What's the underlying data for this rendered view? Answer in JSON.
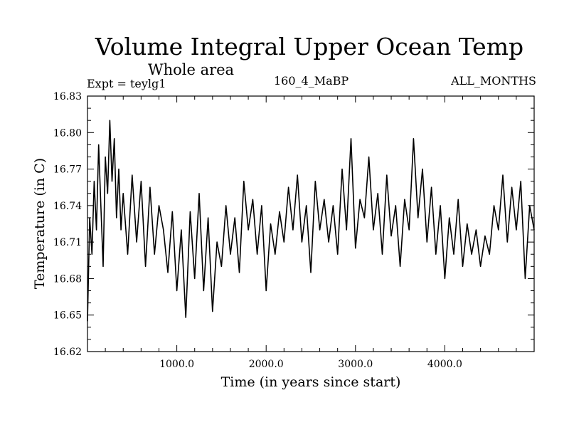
{
  "chart_data": {
    "type": "line",
    "title": "Volume Integral Upper Ocean Temp",
    "subtitle": "Whole area",
    "experiment": "Expt = teylg1",
    "run": "160_4_MaBP",
    "months": "ALL_MONTHS",
    "xlabel": "Time (in years since start)",
    "ylabel": "Temperature (in C)",
    "xlim": [
      0,
      5000
    ],
    "ylim": [
      16.62,
      16.83
    ],
    "x_ticks": [
      {
        "value": 1000,
        "label": "1000.0"
      },
      {
        "value": 2000,
        "label": "2000.0"
      },
      {
        "value": 3000,
        "label": "3000.0"
      },
      {
        "value": 4000,
        "label": "4000.0"
      }
    ],
    "y_ticks": [
      {
        "value": 16.62,
        "label": "16.62"
      },
      {
        "value": 16.65,
        "label": "16.65"
      },
      {
        "value": 16.68,
        "label": "16.68"
      },
      {
        "value": 16.71,
        "label": "16.71"
      },
      {
        "value": 16.74,
        "label": "16.74"
      },
      {
        "value": 16.77,
        "label": "16.77"
      },
      {
        "value": 16.8,
        "label": "16.80"
      },
      {
        "value": 16.83,
        "label": "16.83"
      }
    ],
    "x_minor_step": 200,
    "y_minor_step": 0.01,
    "series": [
      {
        "name": "Volume Integral Upper Ocean Temp",
        "x": [
          0,
          25,
          50,
          75,
          100,
          125,
          150,
          175,
          200,
          225,
          250,
          275,
          300,
          325,
          350,
          375,
          400,
          450,
          500,
          550,
          600,
          650,
          700,
          750,
          800,
          850,
          900,
          950,
          1000,
          1050,
          1100,
          1150,
          1200,
          1250,
          1300,
          1350,
          1400,
          1450,
          1500,
          1550,
          1600,
          1650,
          1700,
          1750,
          1800,
          1850,
          1900,
          1950,
          2000,
          2050,
          2100,
          2150,
          2200,
          2250,
          2300,
          2350,
          2400,
          2450,
          2500,
          2550,
          2600,
          2650,
          2700,
          2750,
          2800,
          2850,
          2900,
          2950,
          3000,
          3050,
          3100,
          3150,
          3200,
          3250,
          3300,
          3350,
          3400,
          3450,
          3500,
          3550,
          3600,
          3650,
          3700,
          3750,
          3800,
          3850,
          3900,
          3950,
          4000,
          4050,
          4100,
          4150,
          4200,
          4250,
          4300,
          4350,
          4400,
          4450,
          4500,
          4550,
          4600,
          4650,
          4700,
          4750,
          4800,
          4850,
          4900,
          4950,
          5000
        ],
        "values": [
          16.645,
          16.73,
          16.7,
          16.76,
          16.72,
          16.79,
          16.74,
          16.69,
          16.78,
          16.75,
          16.81,
          16.76,
          16.795,
          16.73,
          16.77,
          16.72,
          16.75,
          16.7,
          16.765,
          16.71,
          16.76,
          16.69,
          16.755,
          16.7,
          16.74,
          16.72,
          16.685,
          16.735,
          16.67,
          16.72,
          16.648,
          16.735,
          16.68,
          16.75,
          16.67,
          16.73,
          16.653,
          16.71,
          16.69,
          16.74,
          16.7,
          16.73,
          16.685,
          16.76,
          16.72,
          16.745,
          16.7,
          16.74,
          16.67,
          16.725,
          16.7,
          16.735,
          16.71,
          16.755,
          16.72,
          16.765,
          16.71,
          16.74,
          16.685,
          16.76,
          16.72,
          16.745,
          16.71,
          16.74,
          16.7,
          16.77,
          16.72,
          16.795,
          16.705,
          16.745,
          16.73,
          16.78,
          16.72,
          16.75,
          16.7,
          16.765,
          16.715,
          16.74,
          16.69,
          16.745,
          16.72,
          16.795,
          16.73,
          16.77,
          16.71,
          16.755,
          16.7,
          16.74,
          16.68,
          16.73,
          16.7,
          16.745,
          16.69,
          16.725,
          16.7,
          16.72,
          16.69,
          16.715,
          16.7,
          16.74,
          16.72,
          16.765,
          16.71,
          16.755,
          16.72,
          16.76,
          16.68,
          16.74,
          16.72
        ]
      }
    ]
  }
}
